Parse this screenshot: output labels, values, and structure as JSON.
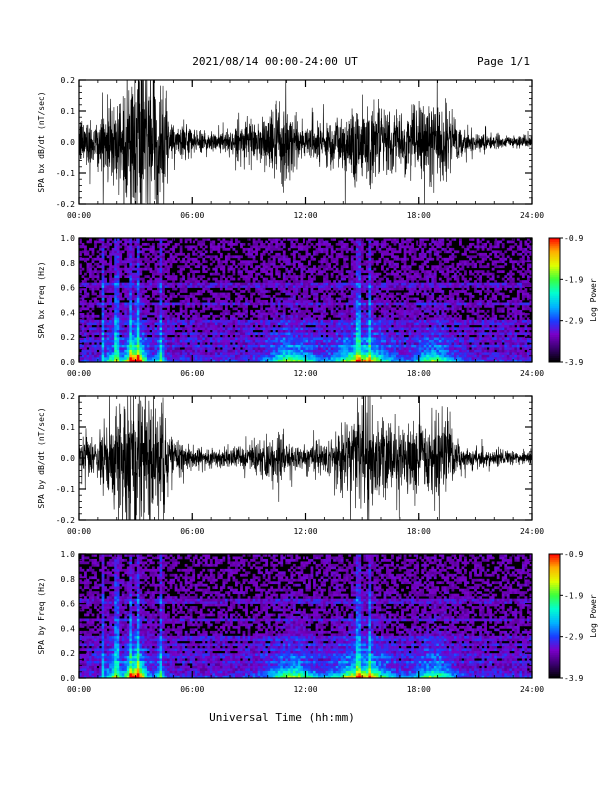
{
  "header": {
    "date_range": "2021/08/14  00:00-24:00 UT",
    "page": "Page 1/1"
  },
  "xlabel": "Universal Time (hh:mm)",
  "colors": {
    "trace": "#000000",
    "spectrogram_background": "#000000",
    "colormap": [
      "#000000",
      "#3a0070",
      "#7a00c8",
      "#1a3cff",
      "#00b4ff",
      "#00ffd0",
      "#3cff3c",
      "#e0ff00",
      "#ffb000",
      "#ff0000"
    ]
  },
  "chart_data": [
    {
      "type": "line",
      "name": "panel-bx-dbdt",
      "ylabel": "SPA bx dB/dt (nT/sec)",
      "ylim": [
        -0.2,
        0.2
      ],
      "yticks": [
        "-0.2",
        "-0.1",
        "0.0",
        "0.1",
        "0.2"
      ],
      "ytick_values": [
        -0.2,
        -0.1,
        0.0,
        0.1,
        0.2
      ],
      "xlim": [
        0,
        24
      ],
      "xticks": [
        "00:00",
        "06:00",
        "12:00",
        "18:00",
        "24:00"
      ],
      "xtick_values": [
        0,
        6,
        12,
        18,
        24
      ],
      "envelope_hours": [
        0,
        1,
        1.5,
        2,
        2.7,
        3,
        4,
        4.5,
        5,
        6,
        7,
        8,
        9,
        10,
        10.5,
        11,
        11.5,
        12,
        13,
        14,
        14.5,
        15,
        15.5,
        16,
        17,
        18,
        19,
        19.5,
        20,
        21,
        22,
        23,
        24
      ],
      "envelope_amplitude": [
        0.07,
        0.08,
        0.12,
        0.14,
        0.22,
        0.22,
        0.22,
        0.15,
        0.06,
        0.04,
        0.03,
        0.04,
        0.05,
        0.09,
        0.1,
        0.13,
        0.08,
        0.05,
        0.06,
        0.1,
        0.12,
        0.14,
        0.12,
        0.1,
        0.08,
        0.1,
        0.12,
        0.1,
        0.05,
        0.03,
        0.02,
        0.02,
        0.015
      ]
    },
    {
      "type": "heatmap",
      "name": "panel-bx-spectrogram",
      "ylabel": "SPA bx Freq (Hz)",
      "ylim": [
        0,
        1
      ],
      "yticks": [
        "0.0",
        "0.2",
        "0.4",
        "0.6",
        "0.8",
        "1.0"
      ],
      "ytick_values": [
        0,
        0.2,
        0.4,
        0.6,
        0.8,
        1.0
      ],
      "xlim": [
        0,
        24
      ],
      "xticks": [
        "00:00",
        "06:00",
        "12:00",
        "18:00",
        "24:00"
      ],
      "xtick_values": [
        0,
        6,
        12,
        18,
        24
      ],
      "colorbar_label": "Log Power",
      "colorbar_ticks": [
        "-0.9",
        "-1.9",
        "-2.9",
        "-3.9"
      ],
      "colorbar_tick_values": [
        -0.9,
        -1.9,
        -2.9,
        -3.9
      ],
      "clim": [
        -3.9,
        -0.9
      ]
    },
    {
      "type": "line",
      "name": "panel-by-dbdt",
      "ylabel": "SPA by dB/dt (nT/sec)",
      "ylim": [
        -0.2,
        0.2
      ],
      "yticks": [
        "-0.2",
        "-0.1",
        "0.0",
        "0.1",
        "0.2"
      ],
      "ytick_values": [
        -0.2,
        -0.1,
        0.0,
        0.1,
        0.2
      ],
      "xlim": [
        0,
        24
      ],
      "xticks": [
        "00:00",
        "06:00",
        "12:00",
        "18:00",
        "24:00"
      ],
      "xtick_values": [
        0,
        6,
        12,
        18,
        24
      ],
      "envelope_hours": [
        0,
        1,
        1.5,
        2,
        2.7,
        3,
        4,
        4.5,
        5,
        6,
        7,
        8,
        9,
        10,
        10.5,
        11,
        12,
        13,
        14,
        14.5,
        15,
        15.5,
        16,
        17,
        18,
        19,
        19.5,
        20,
        21,
        22,
        23,
        24
      ],
      "envelope_amplitude": [
        0.06,
        0.07,
        0.12,
        0.16,
        0.22,
        0.22,
        0.22,
        0.14,
        0.05,
        0.03,
        0.025,
        0.03,
        0.04,
        0.06,
        0.08,
        0.05,
        0.04,
        0.05,
        0.09,
        0.12,
        0.14,
        0.14,
        0.12,
        0.09,
        0.1,
        0.12,
        0.1,
        0.05,
        0.03,
        0.025,
        0.02,
        0.02
      ]
    },
    {
      "type": "heatmap",
      "name": "panel-by-spectrogram",
      "ylabel": "SPA by Freq (Hz)",
      "ylim": [
        0,
        1
      ],
      "yticks": [
        "0.0",
        "0.2",
        "0.4",
        "0.6",
        "0.8",
        "1.0"
      ],
      "ytick_values": [
        0,
        0.2,
        0.4,
        0.6,
        0.8,
        1.0
      ],
      "xlim": [
        0,
        24
      ],
      "xticks": [
        "00:00",
        "06:00",
        "12:00",
        "18:00",
        "24:00"
      ],
      "xtick_values": [
        0,
        6,
        12,
        18,
        24
      ],
      "colorbar_label": "Log Power",
      "colorbar_ticks": [
        "-0.9",
        "-1.9",
        "-2.9",
        "-3.9"
      ],
      "colorbar_tick_values": [
        -0.9,
        -1.9,
        -2.9,
        -3.9
      ],
      "clim": [
        -3.9,
        -0.9
      ]
    }
  ]
}
